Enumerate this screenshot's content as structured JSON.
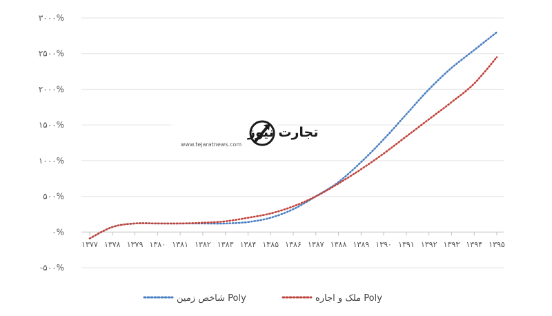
{
  "chart_data": {
    "type": "line",
    "title": "",
    "xlabel": "",
    "ylabel": "",
    "categories": [
      "۱۳۷۷",
      "۱۳۷۸",
      "۱۳۷۹",
      "۱۳۸۰",
      "۱۳۸۱",
      "۱۳۸۲",
      "۱۳۸۳",
      "۱۳۸۴",
      "۱۳۸۵",
      "۱۳۸۶",
      "۱۳۸۷",
      "۱۳۸۸",
      "۱۳۸۹",
      "۱۳۹۰",
      "۱۳۹۱",
      "۱۳۹۲",
      "۱۳۹۳",
      "۱۳۹۴",
      "۱۳۹۵"
    ],
    "y_tick_values": [
      3000,
      2500,
      2000,
      1500,
      1000,
      500,
      0,
      -500
    ],
    "y_tick_labels": [
      "۳۰۰۰%",
      "۲۵۰۰%",
      "۲۰۰۰%",
      "۱۵۰۰%",
      "۱۰۰۰%",
      "۵۰۰%",
      "۰%",
      "-۵۰۰%"
    ],
    "ylim": [
      -500,
      3000
    ],
    "grid": true,
    "legend_position": "bottom",
    "series": [
      {
        "name": "شاخص زمین Poly",
        "color": "#4a7fc1",
        "values": [
          -90,
          70,
          120,
          120,
          120,
          120,
          120,
          140,
          200,
          320,
          500,
          700,
          980,
          1300,
          1650,
          2000,
          2300,
          2550,
          2800
        ]
      },
      {
        "name": "ملک و اجاره Poly",
        "color": "#c0443c",
        "values": [
          -90,
          70,
          120,
          120,
          120,
          130,
          150,
          200,
          260,
          360,
          500,
          680,
          880,
          1100,
          1340,
          1580,
          1820,
          2080,
          2450
        ]
      }
    ]
  },
  "watermark": {
    "brand_text": "تجارت نیوز",
    "url_text": "www.tejaratnews.com",
    "brand_color": "#1a1a1a",
    "accent_color": "#e03a2f",
    "icon": "upward-arrow-logo-icon"
  }
}
